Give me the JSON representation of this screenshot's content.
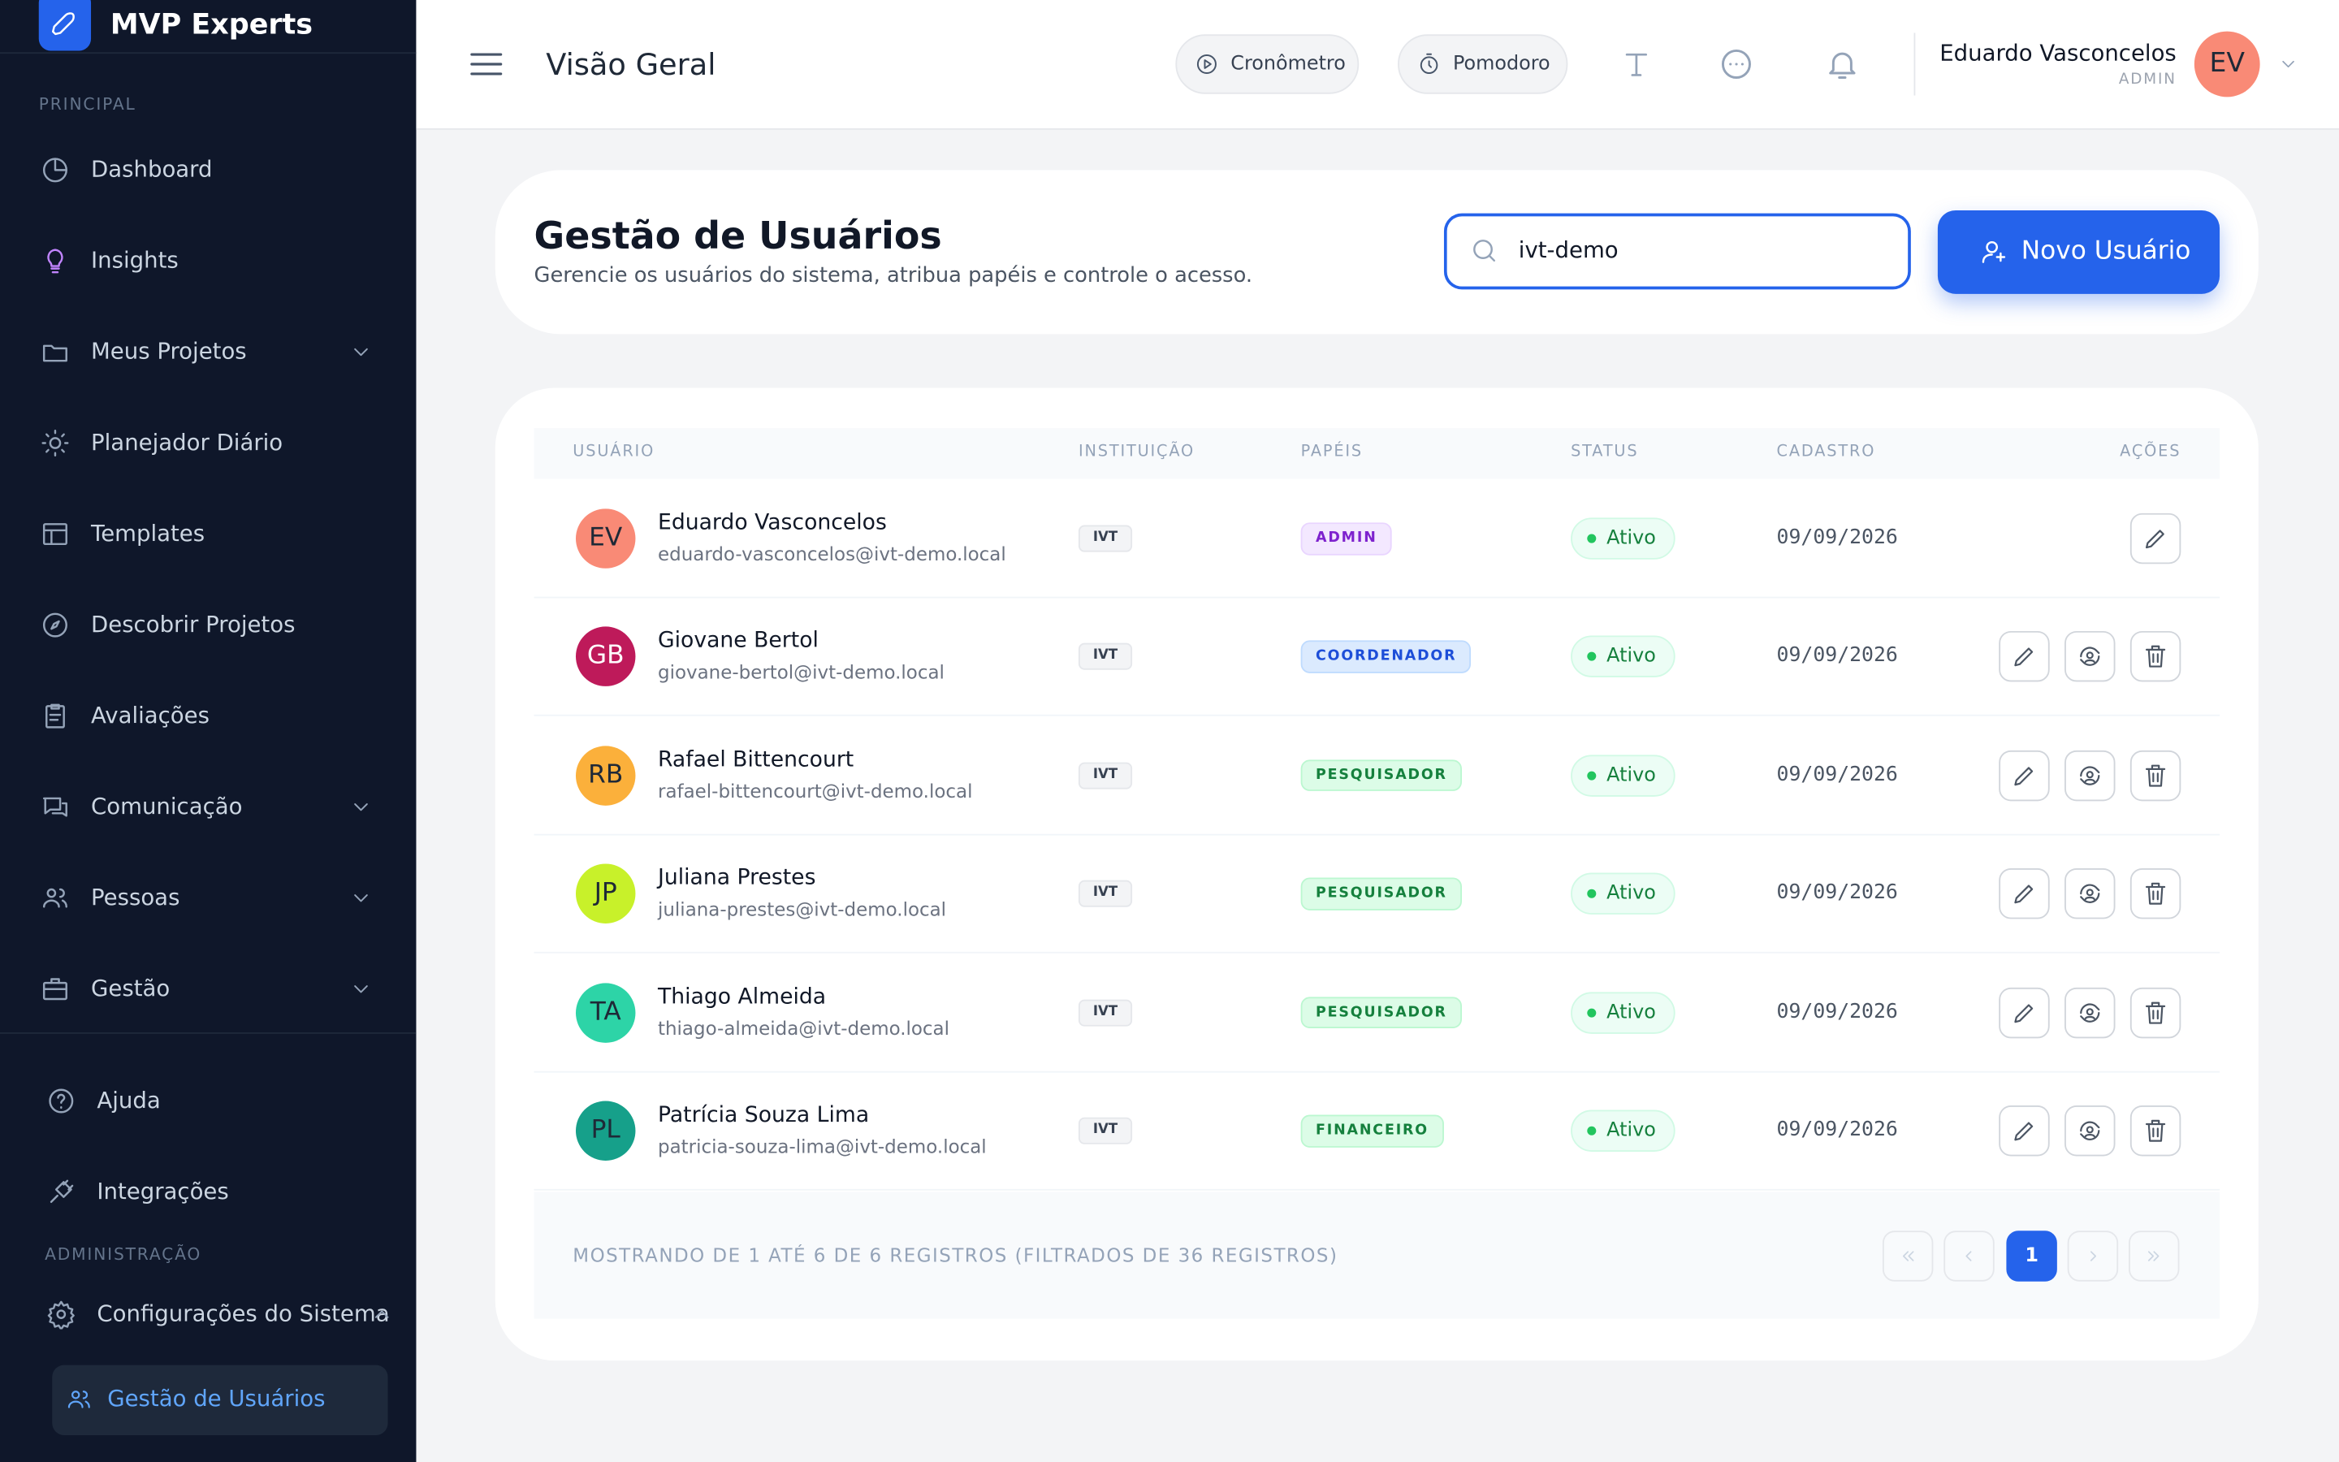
{
  "sidebar": {
    "brand": "MVP Experts",
    "section_main": "PRINCIPAL",
    "items": [
      "Dashboard",
      "Insights",
      "Meus Projetos",
      "Planejador Diário",
      "Templates",
      "Descobrir Projetos",
      "Avaliações",
      "Comunicação",
      "Pessoas",
      "Gestão"
    ],
    "bottom_items": [
      "Ajuda",
      "Integrações"
    ],
    "section_admin": "ADMINISTRAÇÃO",
    "admin_item": "Configurações do Sistema",
    "admin_subitem": "Gestão de Usuários"
  },
  "header": {
    "title": "Visão Geral",
    "buttons": [
      "Cronômetro",
      "Pomodoro"
    ],
    "user": {
      "name": "Eduardo Vasconcelos",
      "role": "ADMIN",
      "initials": "EV"
    }
  },
  "page": {
    "title": "Gestão de Usuários",
    "subtitle": "Gerencie os usuários do sistema, atribua papéis e controle o acesso.",
    "search": "ivt-demo",
    "new_button": "Novo Usuário"
  },
  "table": {
    "columns": [
      "USUÁRIO",
      "INSTITUIÇÃO",
      "PAPÉIS",
      "STATUS",
      "CADASTRO",
      "AÇÕES"
    ],
    "rows": [
      {
        "initials": "EV",
        "name": "Eduardo Vasconcelos",
        "email": "eduardo-vasconcelos@ivt-demo.local",
        "institution": "IVT",
        "role": "ADMIN",
        "status": "Ativo",
        "date": "09/09/2026"
      },
      {
        "initials": "GB",
        "name": "Giovane Bertol",
        "email": "giovane-bertol@ivt-demo.local",
        "institution": "IVT",
        "role": "COORDENADOR",
        "status": "Ativo",
        "date": "09/09/2026"
      },
      {
        "initials": "RB",
        "name": "Rafael Bittencourt",
        "email": "rafael-bittencourt@ivt-demo.local",
        "institution": "IVT",
        "role": "PESQUISADOR",
        "status": "Ativo",
        "date": "09/09/2026"
      },
      {
        "initials": "JP",
        "name": "Juliana Prestes",
        "email": "juliana-prestes@ivt-demo.local",
        "institution": "IVT",
        "role": "PESQUISADOR",
        "status": "Ativo",
        "date": "09/09/2026"
      },
      {
        "initials": "TA",
        "name": "Thiago Almeida",
        "email": "thiago-almeida@ivt-demo.local",
        "institution": "IVT",
        "role": "PESQUISADOR",
        "status": "Ativo",
        "date": "09/09/2026"
      },
      {
        "initials": "PL",
        "name": "Patrícia Souza Lima",
        "email": "patricia-souza-lima@ivt-demo.local",
        "institution": "IVT",
        "role": "FINANCEIRO",
        "status": "Ativo",
        "date": "09/09/2026"
      }
    ]
  },
  "pagination": {
    "summary": "MOSTRANDO DE 1 ATÉ 6 DE 6 REGISTROS (FILTRADOS DE 36 REGISTROS)",
    "current": "1"
  }
}
